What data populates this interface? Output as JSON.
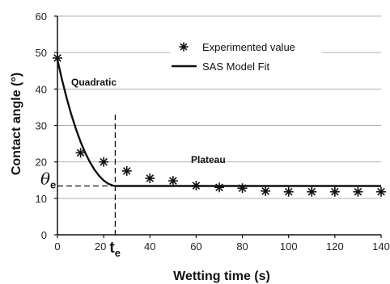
{
  "colors": {
    "axis": "#111111",
    "grid": "#b0b0b0",
    "fit_line": "#111111",
    "marker": "#111111"
  },
  "chart_data": {
    "type": "line",
    "xlabel": "Wetting time (s)",
    "ylabel": "Contact angle (°)",
    "xlim": [
      0,
      140
    ],
    "ylim": [
      0,
      60
    ],
    "x_ticks": [
      "0",
      "20",
      "40",
      "60",
      "80",
      "100",
      "120",
      "140"
    ],
    "y_ticks": [
      "0",
      "10",
      "20",
      "30",
      "40",
      "50",
      "60"
    ],
    "grid": "horizontal",
    "legend_position": "top-right",
    "series": [
      {
        "name": "Experimented value",
        "kind": "scatter",
        "marker": "asterisk",
        "x": [
          0,
          10,
          20,
          30,
          40,
          50,
          60,
          70,
          80,
          90,
          100,
          110,
          120,
          130,
          140
        ],
        "y": [
          48.5,
          22.5,
          20.0,
          17.5,
          15.5,
          14.8,
          13.5,
          13.0,
          12.8,
          12.0,
          11.8,
          11.8,
          11.8,
          11.8,
          11.8
        ]
      },
      {
        "name": "SAS Model Fit",
        "kind": "line",
        "x": [
          0,
          2,
          4,
          6,
          8,
          10,
          12,
          14,
          16,
          18,
          20,
          22,
          24,
          25,
          30,
          40,
          60,
          80,
          100,
          120,
          140
        ],
        "y": [
          48.0,
          42.5,
          37.5,
          33.0,
          29.0,
          25.5,
          22.5,
          20.0,
          17.9,
          16.2,
          14.9,
          14.0,
          13.5,
          13.4,
          13.4,
          13.4,
          13.4,
          13.4,
          13.4,
          13.4,
          13.4
        ]
      }
    ],
    "annotations": {
      "quadratic": "Quadratic",
      "plateau": "Plateau",
      "theta_symbol": "θ",
      "theta_subscript": "e",
      "te_symbol": "t",
      "te_subscript": "e",
      "theta_e_value": 13.4,
      "t_e_value": 25
    }
  }
}
